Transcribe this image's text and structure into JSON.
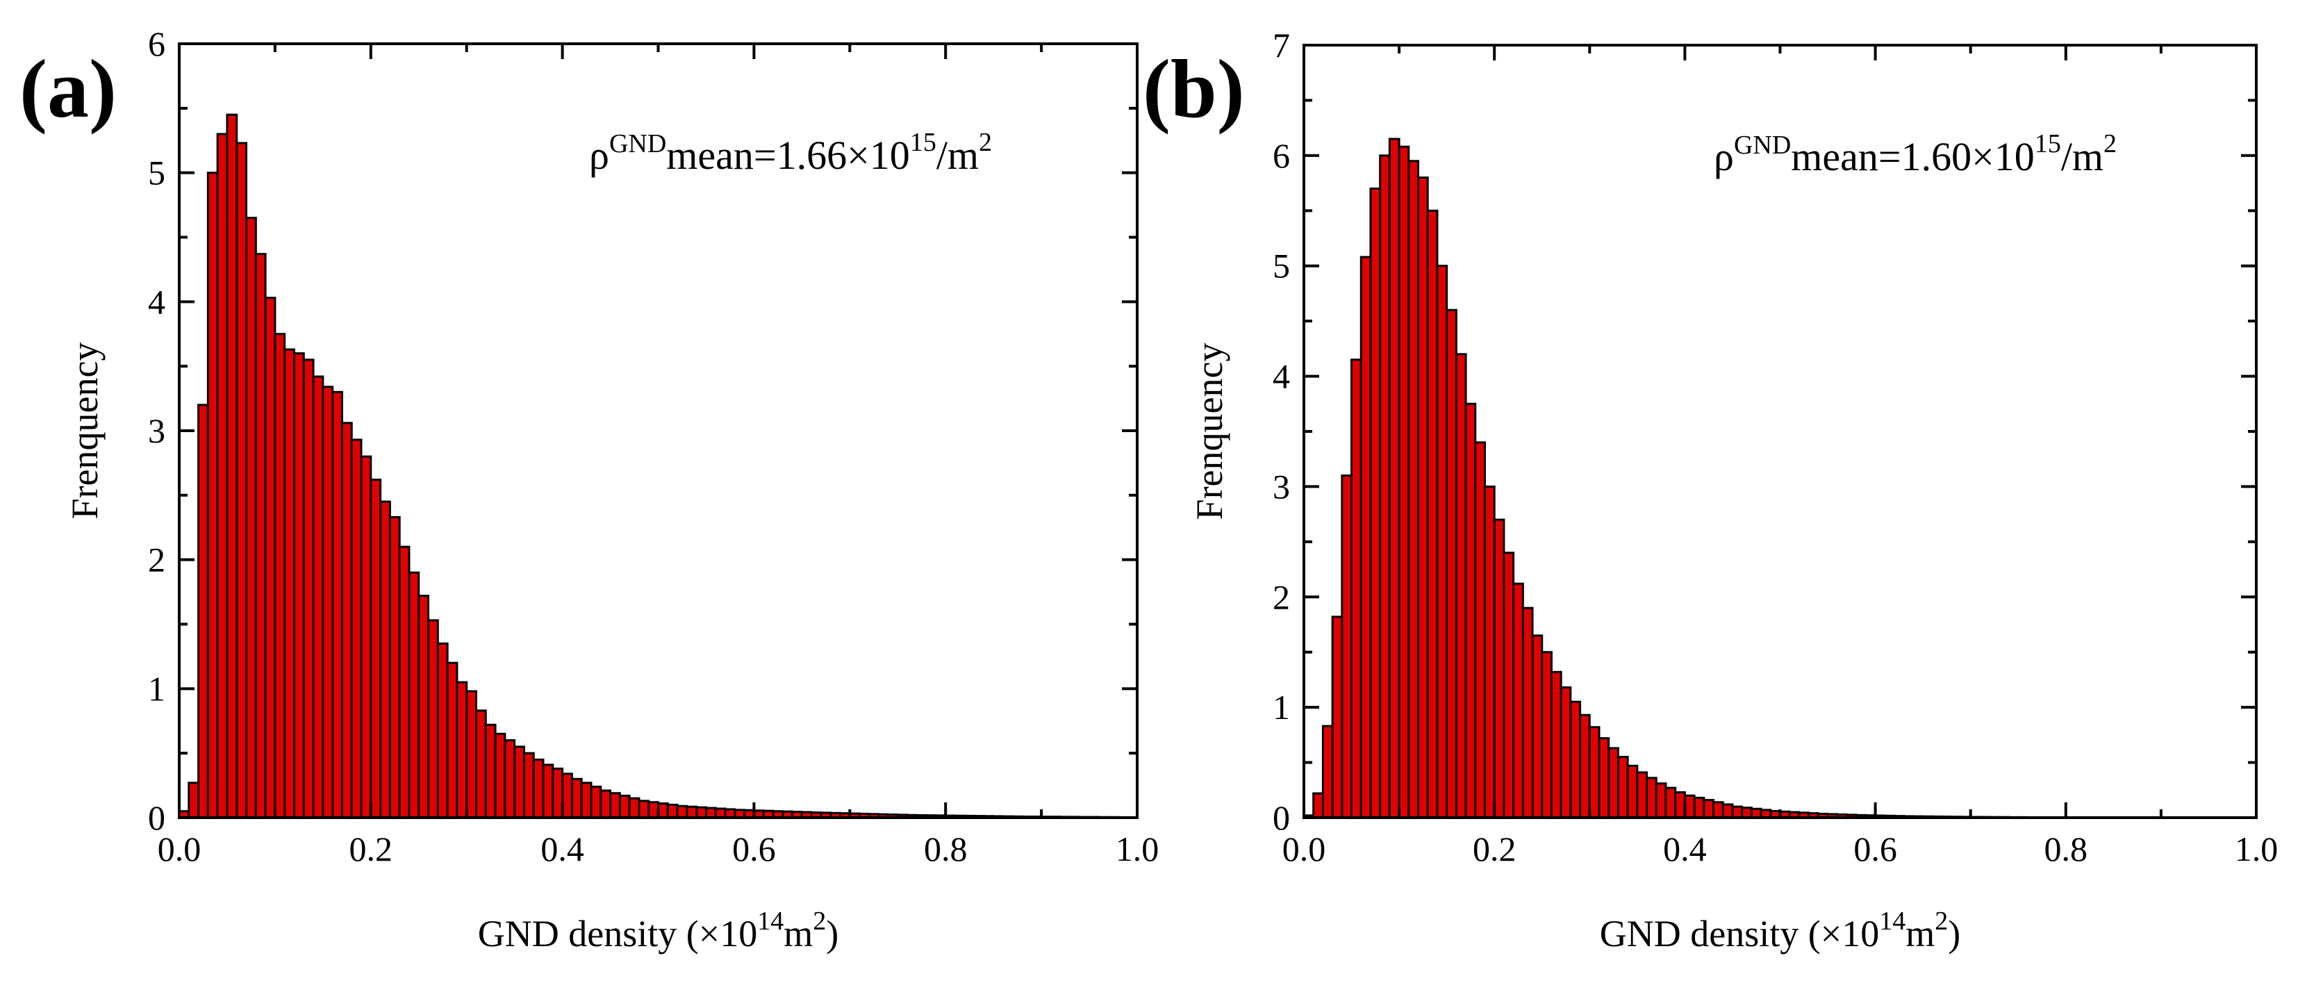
{
  "chart_data": [
    {
      "type": "bar",
      "panel_label": "(a)",
      "xlabel": "GND density (×10",
      "xlabel_exp": "14",
      "xlabel_unit": "m",
      "xlabel_unit_exp": "2",
      "xlabel_close": ")",
      "ylabel": "Frenquency",
      "xlim": [
        0,
        1.0
      ],
      "ylim": [
        0,
        6
      ],
      "xticks": [
        "0.0",
        "0.2",
        "0.4",
        "0.6",
        "0.8",
        "1.0"
      ],
      "yticks": [
        "0",
        "1",
        "2",
        "3",
        "4",
        "5",
        "6"
      ],
      "bin_width": 0.01,
      "annotation": {
        "rho": "ρ",
        "sup": "GND",
        "text": "mean=1.66×10",
        "exp": "15",
        "unit": "/m",
        "unit_exp": "2"
      },
      "values": [
        0.05,
        0.27,
        3.2,
        5.0,
        5.3,
        5.45,
        5.23,
        4.65,
        4.37,
        4.03,
        3.75,
        3.63,
        3.6,
        3.55,
        3.42,
        3.34,
        3.3,
        3.06,
        2.93,
        2.8,
        2.62,
        2.45,
        2.33,
        2.1,
        1.9,
        1.72,
        1.53,
        1.35,
        1.2,
        1.05,
        0.98,
        0.83,
        0.72,
        0.65,
        0.6,
        0.55,
        0.5,
        0.45,
        0.41,
        0.38,
        0.34,
        0.3,
        0.27,
        0.24,
        0.21,
        0.19,
        0.17,
        0.15,
        0.13,
        0.12,
        0.11,
        0.1,
        0.09,
        0.085,
        0.08,
        0.075,
        0.07,
        0.065,
        0.06,
        0.058,
        0.055,
        0.053,
        0.05,
        0.048,
        0.045,
        0.043,
        0.04,
        0.038,
        0.036,
        0.034,
        0.032,
        0.03,
        0.028,
        0.026,
        0.024,
        0.022,
        0.02,
        0.019,
        0.018,
        0.017,
        0.016,
        0.015,
        0.014,
        0.013,
        0.012,
        0.011,
        0.01,
        0.009,
        0.008,
        0.008,
        0.007,
        0.007,
        0.006,
        0.006,
        0.005,
        0.005,
        0.004,
        0.004,
        0.003,
        0.003
      ]
    },
    {
      "type": "bar",
      "panel_label": "(b)",
      "xlabel": "GND density (×10",
      "xlabel_exp": "14",
      "xlabel_unit": "m",
      "xlabel_unit_exp": "2",
      "xlabel_close": ")",
      "ylabel": "Frenquency",
      "xlim": [
        0,
        1.0
      ],
      "ylim": [
        0,
        7
      ],
      "xticks": [
        "0.0",
        "0.2",
        "0.4",
        "0.6",
        "0.8",
        "1.0"
      ],
      "yticks": [
        "0",
        "1",
        "2",
        "3",
        "4",
        "5",
        "6",
        "7"
      ],
      "bin_width": 0.01,
      "annotation": {
        "rho": "ρ",
        "sup": "GND",
        "text": "mean=1.60×10",
        "exp": "15",
        "unit": "/m",
        "unit_exp": "2"
      },
      "values": [
        0.02,
        0.22,
        0.83,
        1.82,
        3.1,
        4.15,
        5.08,
        5.7,
        6.0,
        6.15,
        6.08,
        5.95,
        5.8,
        5.5,
        5.0,
        4.6,
        4.2,
        3.75,
        3.4,
        3.0,
        2.7,
        2.4,
        2.12,
        1.9,
        1.65,
        1.5,
        1.32,
        1.18,
        1.05,
        0.93,
        0.82,
        0.72,
        0.63,
        0.55,
        0.47,
        0.41,
        0.36,
        0.31,
        0.27,
        0.23,
        0.2,
        0.18,
        0.16,
        0.14,
        0.12,
        0.1,
        0.09,
        0.08,
        0.07,
        0.06,
        0.055,
        0.05,
        0.045,
        0.04,
        0.035,
        0.032,
        0.029,
        0.026,
        0.023,
        0.021,
        0.019,
        0.017,
        0.015,
        0.013,
        0.012,
        0.011,
        0.01,
        0.009,
        0.008,
        0.007,
        0.006,
        0.006,
        0.005,
        0.005,
        0.004,
        0.004,
        0.003,
        0.003,
        0.003,
        0.002,
        0.002,
        0.002,
        0.002,
        0.001,
        0.001,
        0.001,
        0.001,
        0.001,
        0.001,
        0.001,
        0.001,
        0.001,
        0.001,
        0.001,
        0.001,
        0.001,
        0.001,
        0.001,
        0.001,
        0.001
      ]
    }
  ]
}
